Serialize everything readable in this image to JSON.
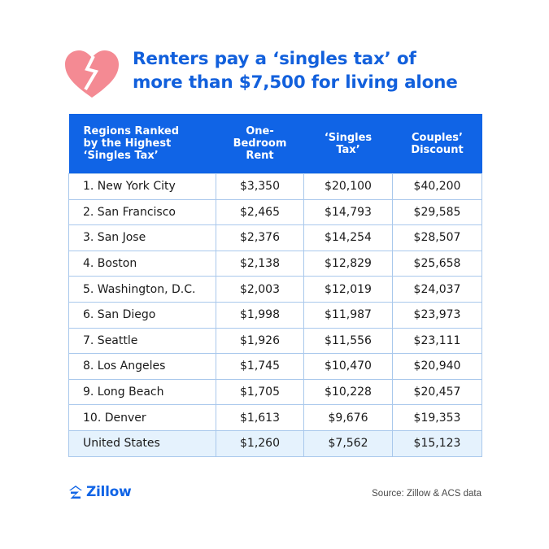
{
  "header": {
    "title_line1": "Renters pay a ‘singles tax’ of",
    "title_line2": "more than $7,500 for living alone"
  },
  "colors": {
    "brand_blue": "#1064e6",
    "heart_pink": "#f48a93",
    "row_border": "#a9c8ec",
    "highlight_row": "#e5f2fd"
  },
  "icons": {
    "heart": "broken-heart-icon",
    "logo": "zillow-logo-icon"
  },
  "chart_data": {
    "type": "table",
    "columns": [
      "Regions Ranked\nby the Highest\n‘Singles Tax’",
      "One-Bedroom\nRent",
      "‘Singles\nTax’",
      "Couples’\nDiscount"
    ],
    "rows": [
      [
        "1. New York City",
        "$3,350",
        "$20,100",
        "$40,200"
      ],
      [
        "2. San Francisco",
        "$2,465",
        "$14,793",
        "$29,585"
      ],
      [
        "3. San Jose",
        "$2,376",
        "$14,254",
        "$28,507"
      ],
      [
        "4. Boston",
        "$2,138",
        "$12,829",
        "$25,658"
      ],
      [
        "5. Washington, D.C.",
        "$2,003",
        "$12,019",
        "$24,037"
      ],
      [
        "6. San Diego",
        "$1,998",
        "$11,987",
        "$23,973"
      ],
      [
        "7. Seattle",
        "$1,926",
        "$11,556",
        "$23,111"
      ],
      [
        "8. Los Angeles",
        "$1,745",
        "$10,470",
        "$20,940"
      ],
      [
        "9. Long Beach",
        "$1,705",
        "$10,228",
        "$20,457"
      ],
      [
        "10. Denver",
        "$1,613",
        "$9,676",
        "$19,353"
      ],
      [
        "United States",
        "$1,260",
        "$7,562",
        "$15,123"
      ]
    ]
  },
  "footer": {
    "logo_text": "Zillow",
    "source": "Source: Zillow & ACS data"
  }
}
